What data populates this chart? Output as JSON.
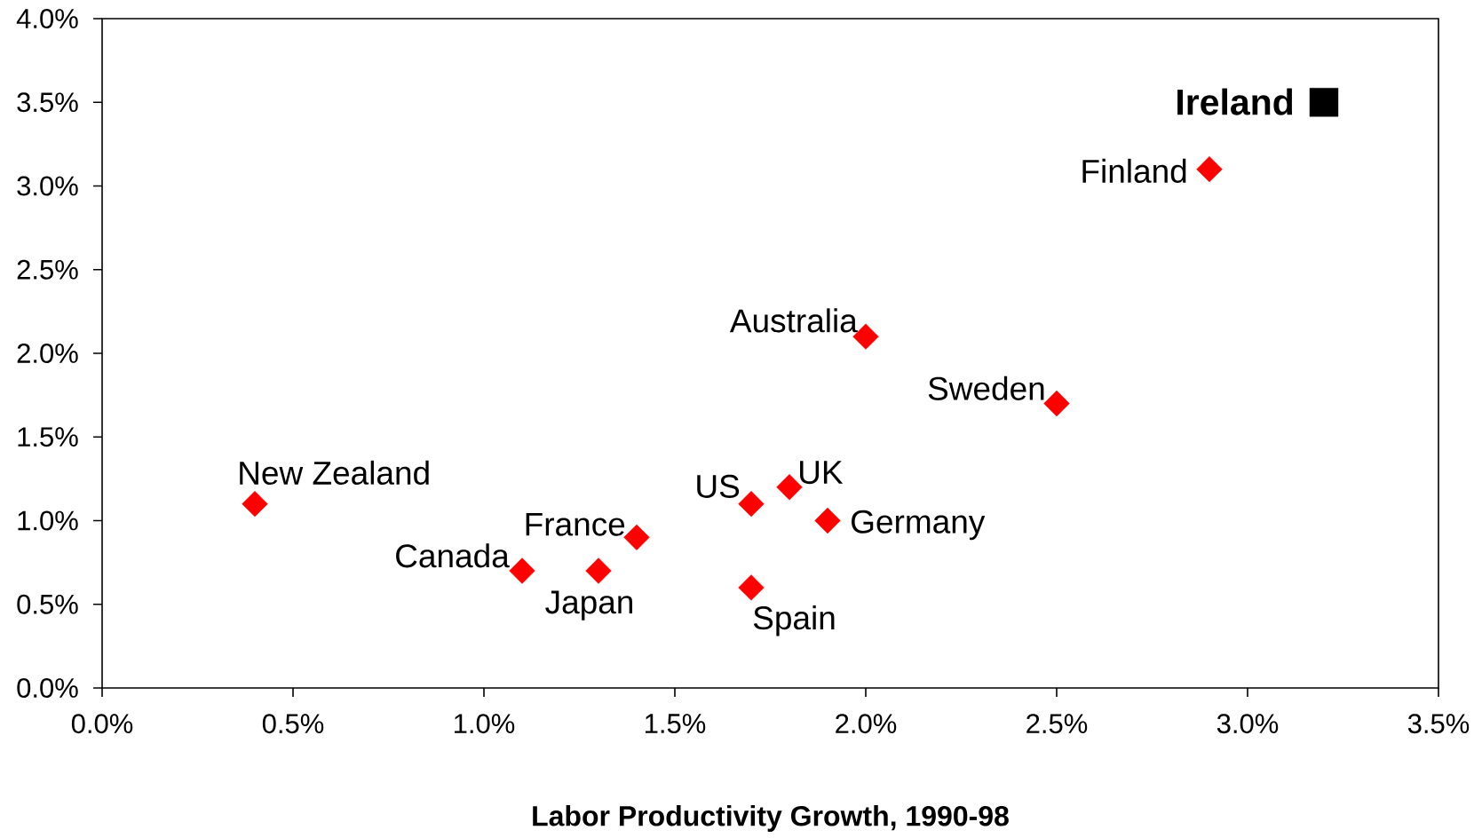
{
  "chart_data": {
    "type": "scatter",
    "xlabel": "Labor Productivity Growth, 1990-98",
    "marker": "diamond",
    "xlim": [
      0,
      3.5
    ],
    "ylim": [
      0,
      4
    ],
    "xticks": [
      {
        "value": 0,
        "label": "0.0%"
      },
      {
        "value": 0.5,
        "label": "0.5%"
      },
      {
        "value": 1,
        "label": "1.0%"
      },
      {
        "value": 1.5,
        "label": "1.5%"
      },
      {
        "value": 2,
        "label": "2.0%"
      },
      {
        "value": 2.5,
        "label": "2.5%"
      },
      {
        "value": 3,
        "label": "3.0%"
      },
      {
        "value": 3.5,
        "label": "3.5%"
      }
    ],
    "yticks": [
      {
        "value": 0,
        "label": "0.0%"
      },
      {
        "value": 0.5,
        "label": "0.5%"
      },
      {
        "value": 1,
        "label": "1.0%"
      },
      {
        "value": 1.5,
        "label": "1.5%"
      },
      {
        "value": 2,
        "label": "2.0%"
      },
      {
        "value": 2.5,
        "label": "2.5%"
      },
      {
        "value": 3,
        "label": "3.0%"
      },
      {
        "value": 3.5,
        "label": "3.5%"
      },
      {
        "value": 4,
        "label": "4.0%"
      }
    ],
    "series": [
      {
        "name": "New Zealand",
        "color": "#ff0000",
        "x": [
          0.4
        ],
        "values": [
          1.1
        ]
      },
      {
        "name": "Canada",
        "color": "#ff0000",
        "x": [
          1.1
        ],
        "values": [
          0.7
        ]
      },
      {
        "name": "Japan",
        "color": "#ff0000",
        "x": [
          1.3
        ],
        "values": [
          0.7
        ]
      },
      {
        "name": "France",
        "color": "#ff0000",
        "x": [
          1.4
        ],
        "values": [
          0.9
        ]
      },
      {
        "name": "US",
        "color": "#ff0000",
        "x": [
          1.7
        ],
        "values": [
          1.1
        ]
      },
      {
        "name": "UK",
        "color": "#ff0000",
        "x": [
          1.8
        ],
        "values": [
          1.2
        ]
      },
      {
        "name": "Germany",
        "color": "#ff0000",
        "x": [
          1.9
        ],
        "values": [
          1.0
        ]
      },
      {
        "name": "Spain",
        "color": "#ff0000",
        "x": [
          1.7
        ],
        "values": [
          0.6
        ]
      },
      {
        "name": "Australia",
        "color": "#ff0000",
        "x": [
          2.0
        ],
        "values": [
          2.1
        ]
      },
      {
        "name": "Sweden",
        "color": "#ff0000",
        "x": [
          2.5
        ],
        "values": [
          1.7
        ]
      },
      {
        "name": "Finland",
        "color": "#ff0000",
        "x": [
          2.9
        ],
        "values": [
          3.1
        ]
      },
      {
        "name": "Ireland",
        "color": "#000000",
        "marker": "square",
        "x": [
          3.2
        ],
        "values": [
          3.5
        ]
      }
    ]
  }
}
